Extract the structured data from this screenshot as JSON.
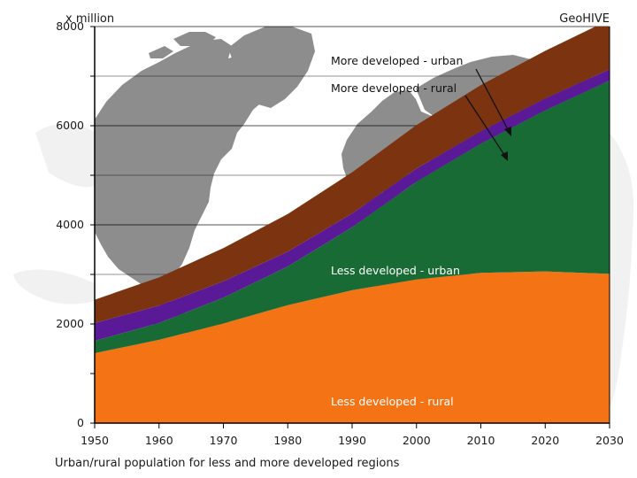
{
  "chart_data": {
    "type": "area",
    "title": "Urban/rural population for less and more developed regions",
    "unit_label": "x million",
    "source_label": "GeoHIVE",
    "xlabel": "",
    "ylabel": "x million",
    "xlim": [
      1950,
      2030
    ],
    "ylim": [
      0,
      8000
    ],
    "x_ticks": [
      1950,
      1960,
      1970,
      1980,
      1990,
      2000,
      2010,
      2020,
      2030
    ],
    "y_ticks": [
      0,
      2000,
      4000,
      6000,
      8000
    ],
    "grid": true,
    "x": [
      1950,
      1960,
      1970,
      1980,
      1990,
      2000,
      2010,
      2020,
      2030
    ],
    "series": [
      {
        "name": "Less developed - rural",
        "label": "Less developed - rural",
        "color": "#f37315",
        "values": [
          1410,
          1680,
          2010,
          2380,
          2680,
          2900,
          3030,
          3060,
          3010
        ]
      },
      {
        "name": "Less developed - urban",
        "label": "Less developed - urban",
        "color": "#196b36",
        "values": [
          250,
          340,
          520,
          780,
          1270,
          1970,
          2610,
          3250,
          3900
        ]
      },
      {
        "name": "More developed - rural",
        "label": "More developed - rural",
        "color": "#5a1a98",
        "values": [
          360,
          350,
          330,
          300,
          280,
          265,
          250,
          240,
          230
        ]
      },
      {
        "name": "More developed - urban",
        "label": "More developed - urban",
        "color": "#7b3310",
        "values": [
          470,
          570,
          670,
          760,
          830,
          880,
          930,
          960,
          1000
        ]
      }
    ],
    "annotations": [
      {
        "text": "More developed - urban",
        "points_to": "More developed - urban"
      },
      {
        "text": "More developed - rural",
        "points_to": "More developed - rural"
      },
      {
        "text": "Less developed - urban",
        "points_to": "Less developed - urban"
      },
      {
        "text": "Less developed - rural",
        "points_to": "Less developed - rural"
      }
    ]
  }
}
